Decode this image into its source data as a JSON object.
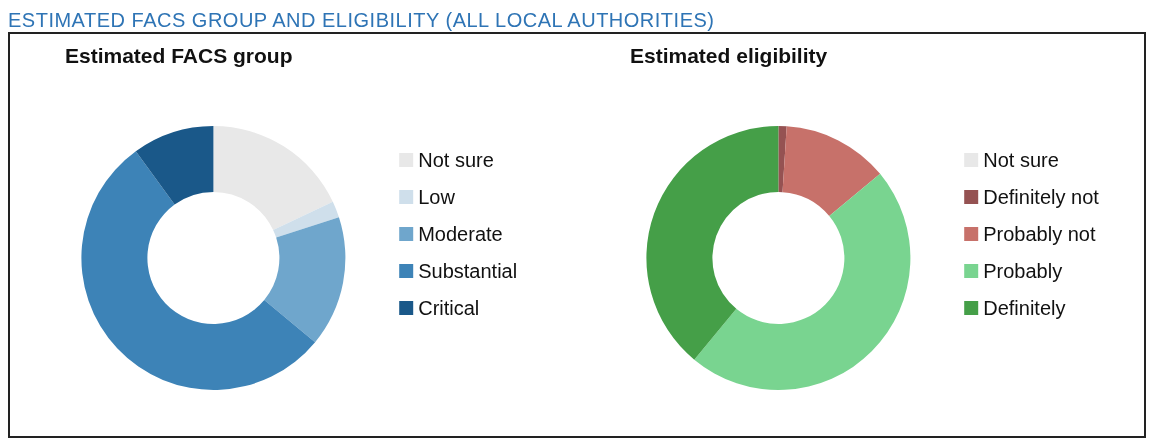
{
  "chart_data": [
    {
      "type": "donut",
      "title": "Estimated FACS group",
      "annotations": [
        "ESTIMATED FACS GROUP AND ELIGIBILITY (ALL LOCAL AUTHORITIES)"
      ],
      "categories": [
        "Not sure",
        "Low",
        "Moderate",
        "Substantial",
        "Critical"
      ],
      "values": [
        18,
        2,
        16,
        54,
        10
      ],
      "colors": [
        "#e8e8e8",
        "#cfdfeb",
        "#6fa6cc",
        "#3d83b7",
        "#1a5889"
      ],
      "legend": "right"
    },
    {
      "type": "donut",
      "title": "Estimated eligibility",
      "categories": [
        "Not sure",
        "Definitely not",
        "Probably not",
        "Probably",
        "Definitely"
      ],
      "values": [
        0,
        1,
        13,
        47,
        39
      ],
      "colors": [
        "#e8e8e8",
        "#955252",
        "#c7716a",
        "#79d490",
        "#459f48"
      ],
      "legend": "right"
    }
  ]
}
